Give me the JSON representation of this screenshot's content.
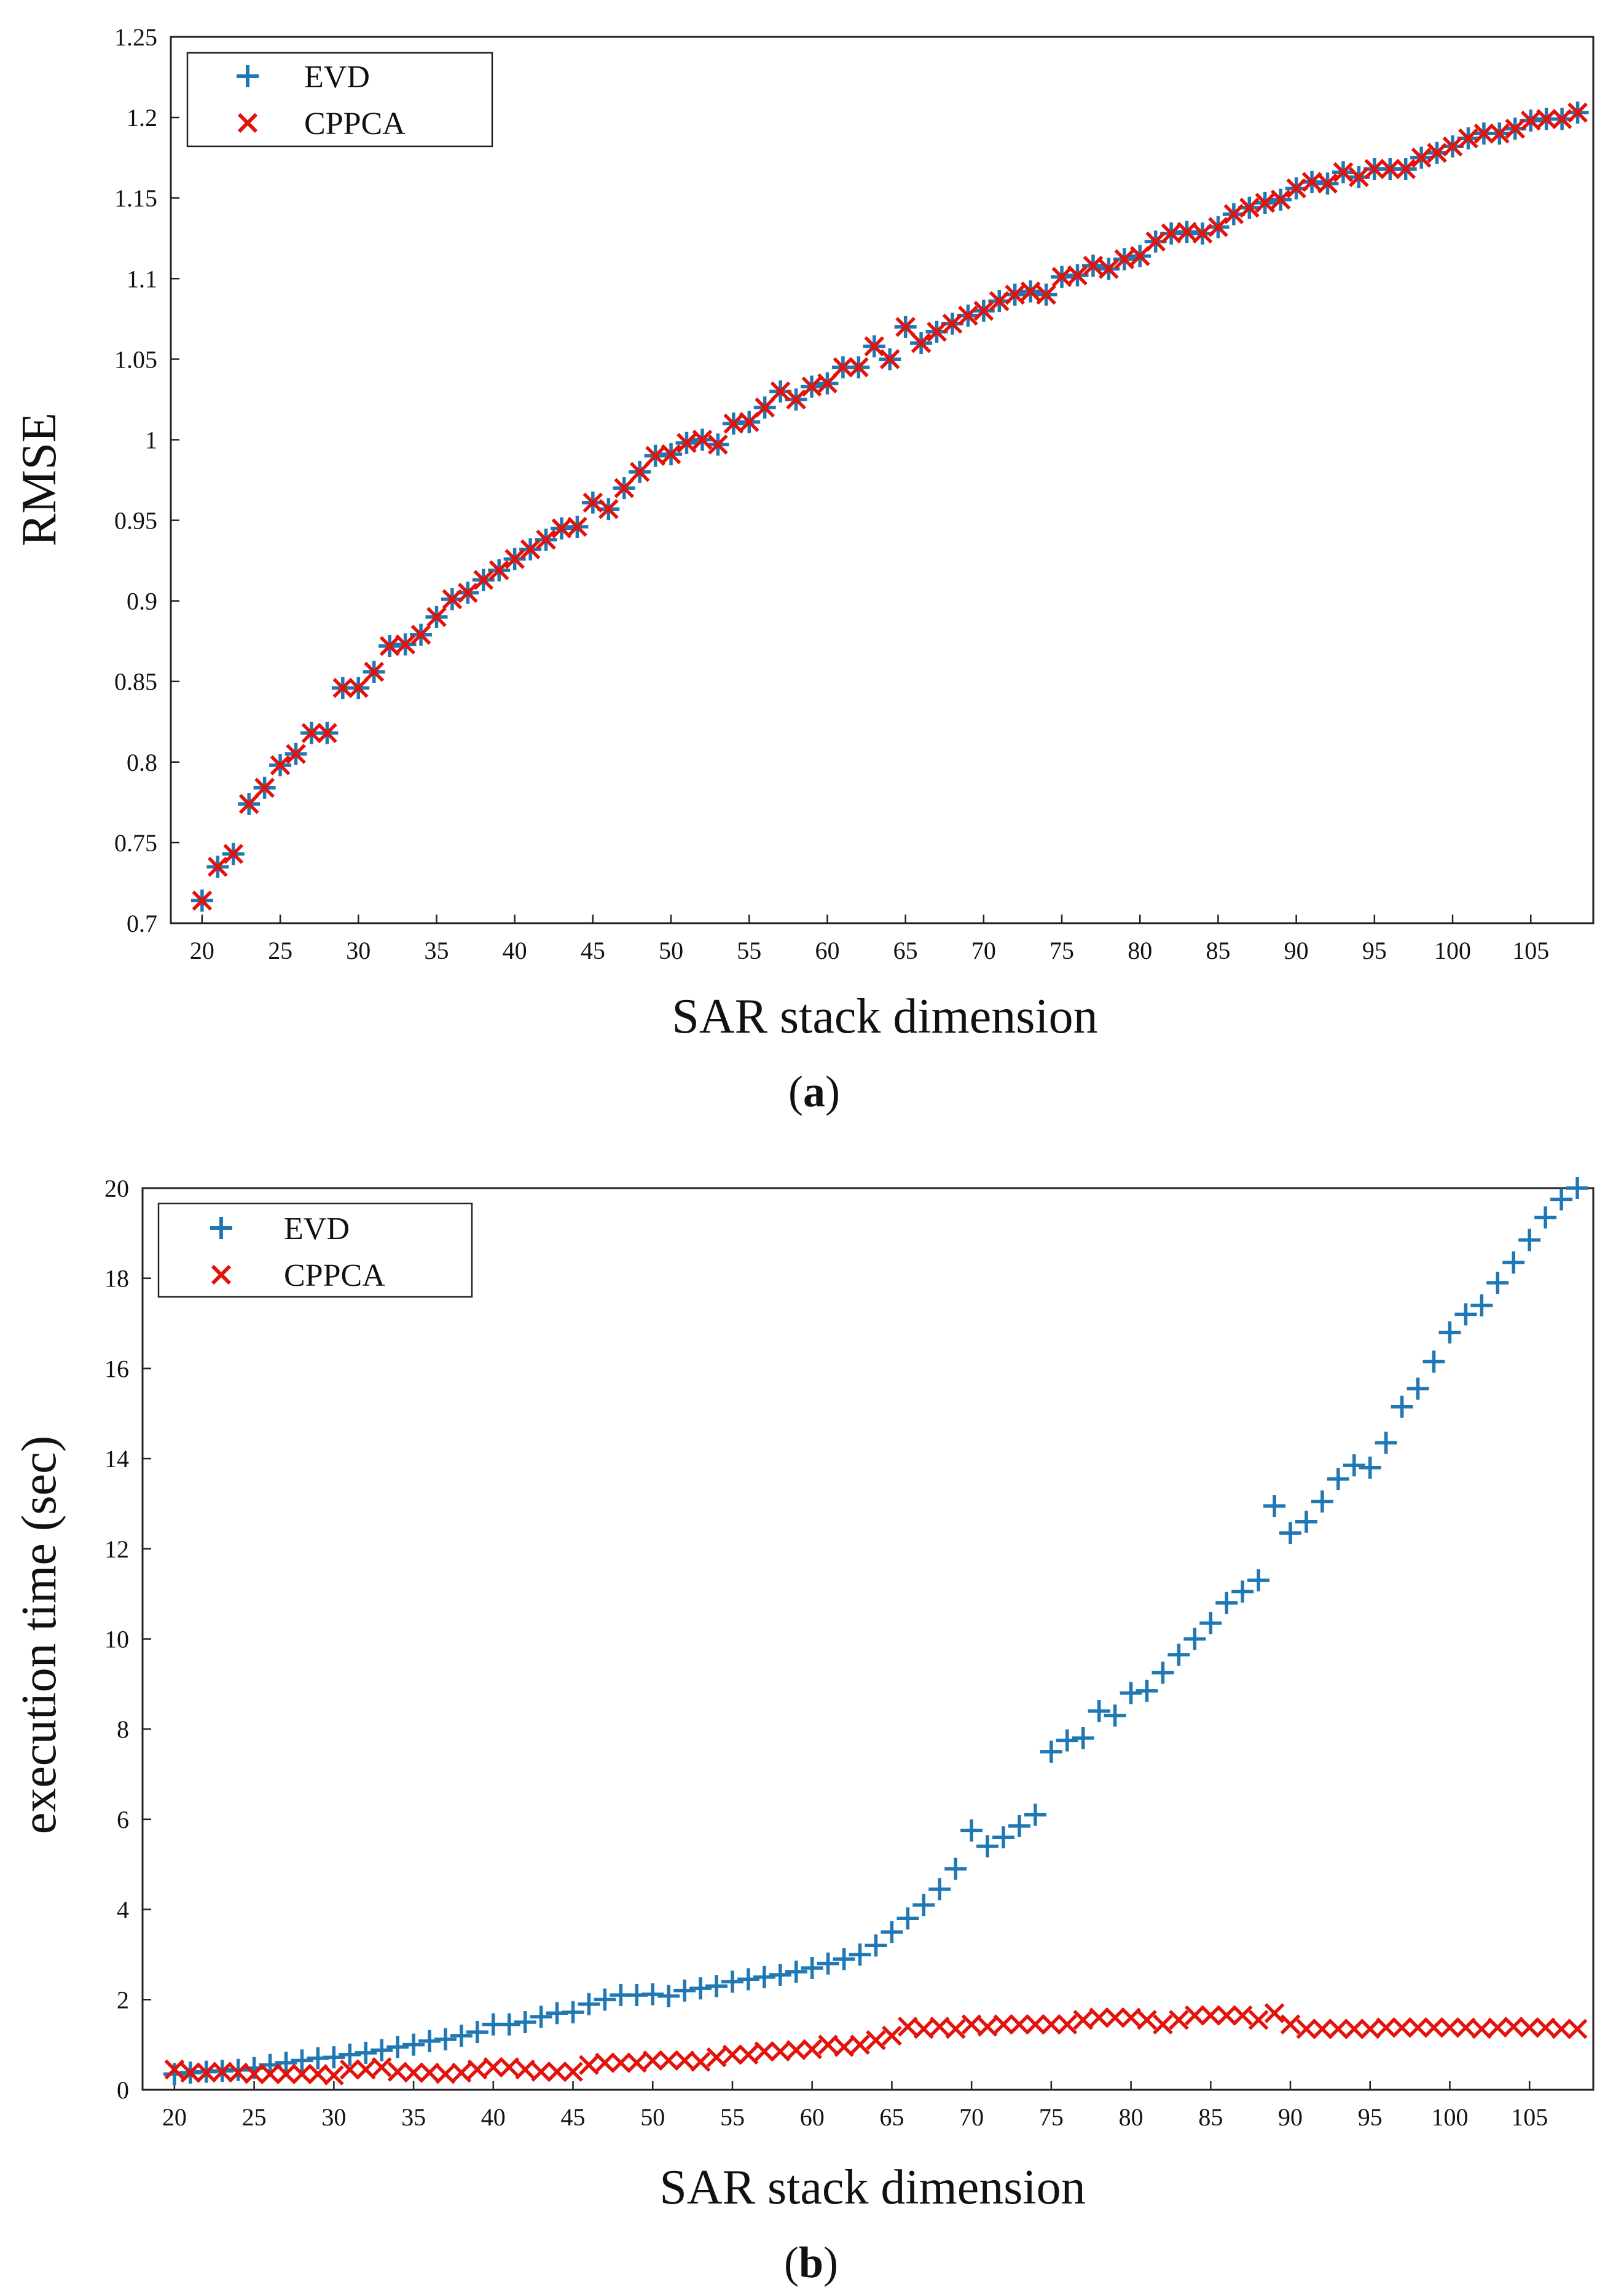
{
  "chart_data": [
    {
      "type": "scatter",
      "panel": "a",
      "caption_letter": "a",
      "xlabel": "SAR stack dimension",
      "ylabel": "RMSE",
      "xlim": [
        18,
        109
      ],
      "ylim": [
        0.7,
        1.25
      ],
      "xticks": [
        "20",
        "25",
        "30",
        "35",
        "40",
        "45",
        "50",
        "55",
        "60",
        "65",
        "70",
        "75",
        "80",
        "85",
        "90",
        "95",
        "100",
        "105"
      ],
      "yticks": [
        "0.7",
        "0.75",
        "0.8",
        "0.85",
        "0.9",
        "0.95",
        "1",
        "1.05",
        "1.1",
        "1.15",
        "1.2",
        "1.25"
      ],
      "legend_position": "top-left",
      "colors": {
        "EVD": "#1f77b4",
        "CPPCA": "#e3120b"
      },
      "x": [
        20,
        21,
        22,
        23,
        24,
        25,
        26,
        27,
        28,
        29,
        30,
        31,
        32,
        33,
        34,
        35,
        36,
        37,
        38,
        39,
        40,
        41,
        42,
        43,
        44,
        45,
        46,
        47,
        48,
        49,
        50,
        51,
        52,
        53,
        54,
        55,
        56,
        57,
        58,
        59,
        60,
        61,
        62,
        63,
        64,
        65,
        66,
        67,
        68,
        69,
        70,
        71,
        72,
        73,
        74,
        75,
        76,
        77,
        78,
        79,
        80,
        81,
        82,
        83,
        84,
        85,
        86,
        87,
        88,
        89,
        90,
        91,
        92,
        93,
        94,
        95,
        96,
        97,
        98,
        99,
        100,
        101,
        102,
        103,
        104,
        105,
        106,
        107,
        108
      ],
      "series": [
        {
          "name": "EVD",
          "marker": "+",
          "values": [
            0.714,
            0.735,
            0.743,
            0.774,
            0.784,
            0.798,
            0.805,
            0.818,
            0.818,
            0.846,
            0.846,
            0.856,
            0.872,
            0.873,
            0.879,
            0.89,
            0.901,
            0.905,
            0.913,
            0.919,
            0.926,
            0.932,
            0.938,
            0.945,
            0.946,
            0.961,
            0.957,
            0.97,
            0.98,
            0.99,
            0.991,
            0.998,
            1.0,
            0.997,
            1.01,
            1.011,
            1.02,
            1.03,
            1.025,
            1.033,
            1.035,
            1.045,
            1.045,
            1.058,
            1.05,
            1.07,
            1.06,
            1.067,
            1.072,
            1.077,
            1.08,
            1.086,
            1.09,
            1.092,
            1.09,
            1.101,
            1.102,
            1.108,
            1.106,
            1.112,
            1.114,
            1.123,
            1.128,
            1.129,
            1.128,
            1.132,
            1.14,
            1.144,
            1.147,
            1.149,
            1.156,
            1.16,
            1.159,
            1.166,
            1.163,
            1.168,
            1.168,
            1.168,
            1.175,
            1.178,
            1.182,
            1.187,
            1.19,
            1.19,
            1.193,
            1.198,
            1.199,
            1.199,
            1.203
          ]
        },
        {
          "name": "CPPCA",
          "marker": "x",
          "values": [
            0.714,
            0.735,
            0.743,
            0.774,
            0.784,
            0.798,
            0.805,
            0.818,
            0.818,
            0.846,
            0.846,
            0.856,
            0.872,
            0.873,
            0.879,
            0.89,
            0.901,
            0.905,
            0.913,
            0.919,
            0.926,
            0.932,
            0.938,
            0.945,
            0.946,
            0.961,
            0.957,
            0.97,
            0.98,
            0.99,
            0.991,
            0.998,
            1.0,
            0.997,
            1.01,
            1.011,
            1.02,
            1.03,
            1.025,
            1.033,
            1.035,
            1.045,
            1.045,
            1.058,
            1.05,
            1.07,
            1.06,
            1.067,
            1.072,
            1.077,
            1.08,
            1.086,
            1.09,
            1.092,
            1.09,
            1.101,
            1.102,
            1.108,
            1.106,
            1.112,
            1.114,
            1.123,
            1.128,
            1.129,
            1.128,
            1.132,
            1.14,
            1.144,
            1.147,
            1.149,
            1.156,
            1.16,
            1.159,
            1.166,
            1.163,
            1.168,
            1.168,
            1.168,
            1.175,
            1.178,
            1.182,
            1.187,
            1.19,
            1.19,
            1.193,
            1.198,
            1.199,
            1.199,
            1.203
          ]
        }
      ]
    },
    {
      "type": "scatter",
      "panel": "b",
      "caption_letter": "b",
      "xlabel": "SAR stack dimension",
      "ylabel": "execution time (sec)",
      "xlim": [
        18,
        109
      ],
      "ylim": [
        0,
        20
      ],
      "xticks": [
        "20",
        "25",
        "30",
        "35",
        "40",
        "45",
        "50",
        "55",
        "60",
        "65",
        "70",
        "75",
        "80",
        "85",
        "90",
        "95",
        "100",
        "105"
      ],
      "yticks": [
        "0",
        "2",
        "4",
        "6",
        "8",
        "10",
        "12",
        "14",
        "16",
        "18",
        "20"
      ],
      "legend_position": "top-left",
      "colors": {
        "EVD": "#1f77b4",
        "CPPCA": "#e3120b"
      },
      "x": [
        20,
        21,
        22,
        23,
        24,
        25,
        26,
        27,
        28,
        29,
        30,
        31,
        32,
        33,
        34,
        35,
        36,
        37,
        38,
        39,
        40,
        41,
        42,
        43,
        44,
        45,
        46,
        47,
        48,
        49,
        50,
        51,
        52,
        53,
        54,
        55,
        56,
        57,
        58,
        59,
        60,
        61,
        62,
        63,
        64,
        65,
        66,
        67,
        68,
        69,
        70,
        71,
        72,
        73,
        74,
        75,
        76,
        77,
        78,
        79,
        80,
        81,
        82,
        83,
        84,
        85,
        86,
        87,
        88,
        89,
        90,
        91,
        92,
        93,
        94,
        95,
        96,
        97,
        98,
        99,
        100,
        101,
        102,
        103,
        104,
        105,
        106,
        107,
        108
      ],
      "series": [
        {
          "name": "EVD",
          "marker": "+",
          "values": [
            0.35,
            0.38,
            0.4,
            0.42,
            0.44,
            0.48,
            0.55,
            0.6,
            0.65,
            0.7,
            0.72,
            0.78,
            0.82,
            0.88,
            0.95,
            1.0,
            1.08,
            1.12,
            1.2,
            1.28,
            1.45,
            1.45,
            1.5,
            1.62,
            1.7,
            1.72,
            1.9,
            2.0,
            2.1,
            2.1,
            2.12,
            2.08,
            2.2,
            2.25,
            2.3,
            2.4,
            2.45,
            2.5,
            2.55,
            2.62,
            2.7,
            2.8,
            2.9,
            3.0,
            3.2,
            3.5,
            3.8,
            4.1,
            4.45,
            4.9,
            5.75,
            5.4,
            5.6,
            5.85,
            6.1,
            7.5,
            7.75,
            7.8,
            8.4,
            8.3,
            8.8,
            8.85,
            9.25,
            9.65,
            10.0,
            10.35,
            10.8,
            11.05,
            11.3,
            12.95,
            12.35,
            12.6,
            13.05,
            13.55,
            13.85,
            13.8,
            14.35,
            15.15,
            15.55,
            16.15,
            16.8,
            17.2,
            17.4,
            17.9,
            18.35,
            18.85,
            19.35,
            19.75,
            20.4
          ]
        },
        {
          "name": "CPPCA",
          "marker": "x",
          "values": [
            0.45,
            0.38,
            0.38,
            0.4,
            0.38,
            0.35,
            0.35,
            0.35,
            0.35,
            0.35,
            0.32,
            0.45,
            0.45,
            0.5,
            0.4,
            0.38,
            0.38,
            0.35,
            0.38,
            0.45,
            0.5,
            0.5,
            0.45,
            0.4,
            0.4,
            0.4,
            0.55,
            0.6,
            0.6,
            0.6,
            0.65,
            0.65,
            0.65,
            0.62,
            0.72,
            0.78,
            0.78,
            0.85,
            0.85,
            0.88,
            0.9,
            1.0,
            0.95,
            1.0,
            1.1,
            1.2,
            1.4,
            1.35,
            1.4,
            1.35,
            1.45,
            1.4,
            1.45,
            1.45,
            1.45,
            1.45,
            1.45,
            1.55,
            1.6,
            1.6,
            1.6,
            1.55,
            1.45,
            1.55,
            1.65,
            1.65,
            1.65,
            1.65,
            1.55,
            1.7,
            1.45,
            1.35,
            1.35,
            1.35,
            1.35,
            1.35,
            1.38,
            1.38,
            1.38,
            1.38,
            1.38,
            1.38,
            1.35,
            1.38,
            1.4,
            1.38,
            1.38,
            1.35,
            1.35
          ]
        }
      ]
    }
  ],
  "legend": {
    "evd_label": "EVD",
    "cppca_label": "CPPCA"
  },
  "captions": {
    "a": "a",
    "b": "b"
  }
}
